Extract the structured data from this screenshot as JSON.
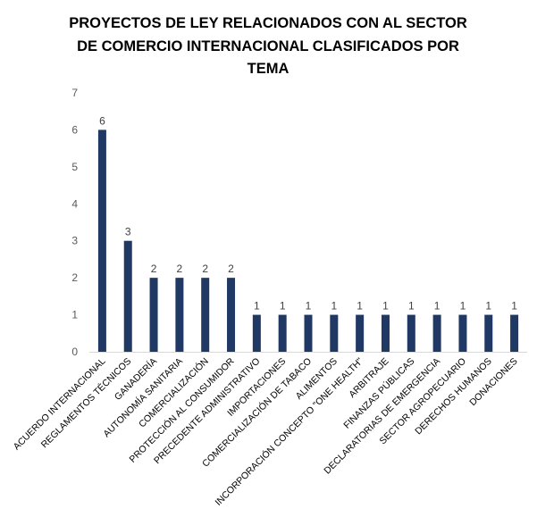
{
  "chart_data": {
    "type": "bar",
    "title_lines": [
      "PROYECTOS DE LEY RELACIONADOS CON AL SECTOR",
      "DE COMERCIO INTERNACIONAL CLASIFICADOS POR",
      "TEMA"
    ],
    "categories": [
      "ACUERDO INTERNACIONAL",
      "REGLAMENTOS TÉCNICOS",
      "GANADERÍA",
      "AUTONOMÍA SANITARIA",
      "COMERCIALIZACIÓN",
      "PROTECCIÓN AL CONSUMIDOR",
      "PRECEDENTE ADMINISTRATIVO",
      "IMPORTACIONES",
      "COMERCIALIZACIÓN DE TABACO",
      "ALIMENTOS",
      "INCORPORACIÓN CONCEPTO \"ONE HEALTH\"",
      "ARBITRAJE",
      "FINANZAS PÚBLICAS",
      "DECLARATORIAS DE EMERGENCIA",
      "SECTOR AGROPECUARIO",
      "DERECHOS HUMANOS",
      "DONACIONES"
    ],
    "values": [
      6,
      3,
      2,
      2,
      2,
      2,
      1,
      1,
      1,
      1,
      1,
      1,
      1,
      1,
      1,
      1,
      1
    ],
    "ylim": [
      0,
      7
    ],
    "yticks": [
      "0",
      "1",
      "2",
      "3",
      "4",
      "5",
      "6",
      "7"
    ],
    "data_labels": true,
    "grid": false,
    "legend": "none",
    "bar_color": "#1f3864",
    "axis_color": "#d9d9d9"
  }
}
